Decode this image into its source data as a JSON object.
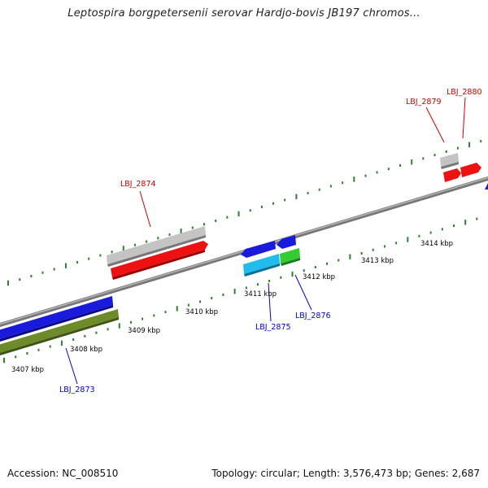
{
  "title": "Leptospira borgpetersenii serovar Hardjo-bovis JB197 chromos...",
  "footer": {
    "accession": "Accession: NC_008510",
    "summary": "Topology: circular; Length: 3,576,473 bp; Genes: 2,687"
  },
  "colors": {
    "backbone": "#8a8a8a",
    "ticks": "#2f7f2f",
    "forward_label": "#cc0000",
    "reverse_label": "#0000cc",
    "scale_label": "#000000"
  },
  "scale_labels": [
    "3407 kbp",
    "3408 kbp",
    "3409 kbp",
    "3410 kbp",
    "3411 kbp",
    "3412 kbp",
    "3413 kbp",
    "3414 kbp"
  ],
  "features": [
    {
      "id": "grey-bar-lbj2874",
      "color": "#c4c4c4",
      "strand": "forward"
    },
    {
      "id": "lbj2874",
      "color": "#ee1111",
      "strand": "forward"
    },
    {
      "id": "grey-small",
      "color": "#c4c4c4",
      "strand": "forward"
    },
    {
      "id": "lbj2879",
      "color": "#ee1111",
      "strand": "forward"
    },
    {
      "id": "lbj2880",
      "color": "#ee1111",
      "strand": "forward"
    },
    {
      "id": "blue-left",
      "color": "#1a1add",
      "strand": "reverse"
    },
    {
      "id": "olive-left",
      "color": "#6e8b2a",
      "strand": "reverse"
    },
    {
      "id": "lbj2875-top",
      "color": "#1a1add",
      "strand": "reverse"
    },
    {
      "id": "lbj2876-top",
      "color": "#1a1add",
      "strand": "reverse"
    },
    {
      "id": "lbj2875",
      "color": "#22bbee",
      "strand": "reverse"
    },
    {
      "id": "lbj2876",
      "color": "#33cc33",
      "strand": "reverse"
    }
  ],
  "gene_labels": [
    {
      "text": "LBJ_2874",
      "strand": "forward"
    },
    {
      "text": "LBJ_2879",
      "strand": "forward"
    },
    {
      "text": "LBJ_2880",
      "strand": "forward"
    },
    {
      "text": "LBJ_2873",
      "strand": "reverse"
    },
    {
      "text": "LBJ_2875",
      "strand": "reverse"
    },
    {
      "text": "LBJ_2876",
      "strand": "reverse"
    }
  ]
}
